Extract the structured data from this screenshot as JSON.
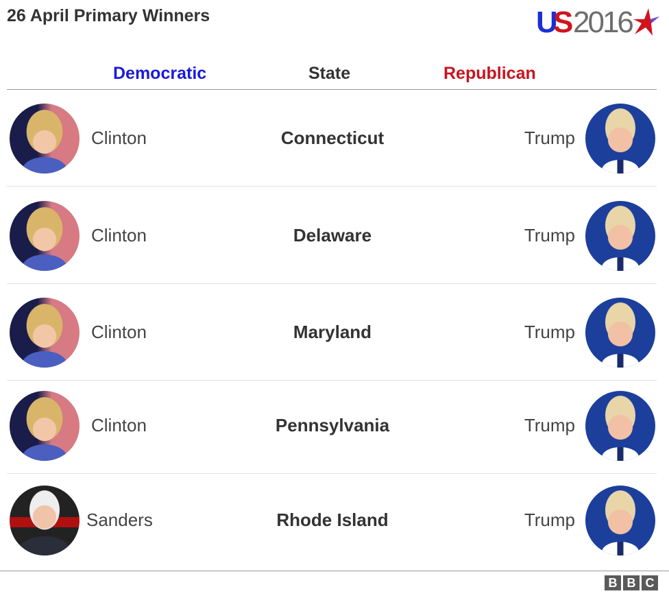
{
  "title": "26 April Primary Winners",
  "logo": {
    "text_us": "US",
    "text_year": "2016",
    "colors": {
      "blue": "#1a2fd6",
      "red": "#d0141e",
      "gray": "#6d6d6d"
    }
  },
  "columns": {
    "democratic": "Democratic",
    "state": "State",
    "republican": "Republican"
  },
  "colors": {
    "democratic": "#1a1adb",
    "republican": "#c8141e"
  },
  "rows": [
    {
      "democratic_winner": "Clinton",
      "state": "Connecticut",
      "republican_winner": "Trump"
    },
    {
      "democratic_winner": "Clinton",
      "state": "Delaware",
      "republican_winner": "Trump"
    },
    {
      "democratic_winner": "Clinton",
      "state": "Maryland",
      "republican_winner": "Trump"
    },
    {
      "democratic_winner": "Clinton",
      "state": "Pennsylvania",
      "republican_winner": "Trump"
    },
    {
      "democratic_winner": "Sanders",
      "state": "Rhode Island",
      "republican_winner": "Trump"
    }
  ],
  "footer": {
    "brand": [
      "B",
      "B",
      "C"
    ]
  }
}
